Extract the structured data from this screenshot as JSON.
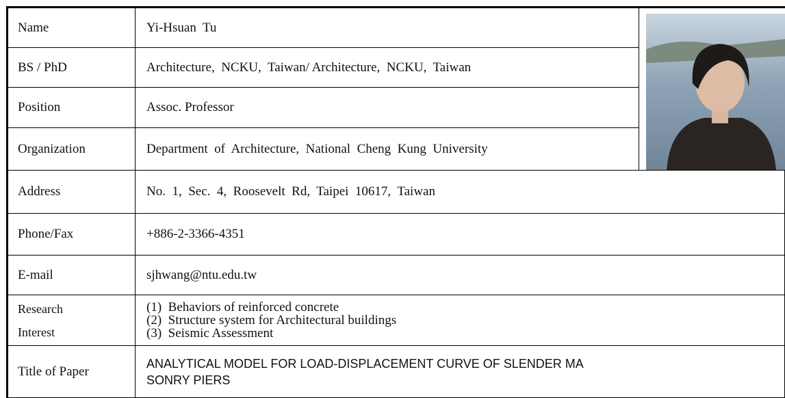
{
  "table": {
    "rows": [
      {
        "label": "Name",
        "value": "Yi-Hsuan  Tu"
      },
      {
        "label": "BS / PhD",
        "value": "Architecture,  NCKU,  Taiwan/ Architecture,  NCKU,  Taiwan"
      },
      {
        "label": "Position",
        "value": "Assoc. Professor"
      },
      {
        "label": "Organization",
        "value": "Department  of  Architecture,  National  Cheng  Kung  University"
      },
      {
        "label": "Address",
        "value": "No.  1,  Sec.  4,  Roosevelt  Rd,  Taipei  10617,  Taiwan"
      },
      {
        "label": "Phone/Fax",
        "value": "+886-2-3366-4351"
      },
      {
        "label": "E-mail",
        "value": "sjhwang@ntu.edu.tw"
      }
    ],
    "research": {
      "label": [
        "Research",
        "Interest"
      ],
      "items": [
        "(1)  Behaviors of reinforced concrete",
        "(2)  Structure system for Architectural buildings",
        "(3)  Seismic Assessment"
      ]
    },
    "paper": {
      "label": "Title of Paper",
      "lines": [
        "ANALYTICAL MODEL FOR LOAD-DISPLACEMENT CURVE OF SLENDER MA",
        "SONRY PIERS"
      ]
    }
  }
}
